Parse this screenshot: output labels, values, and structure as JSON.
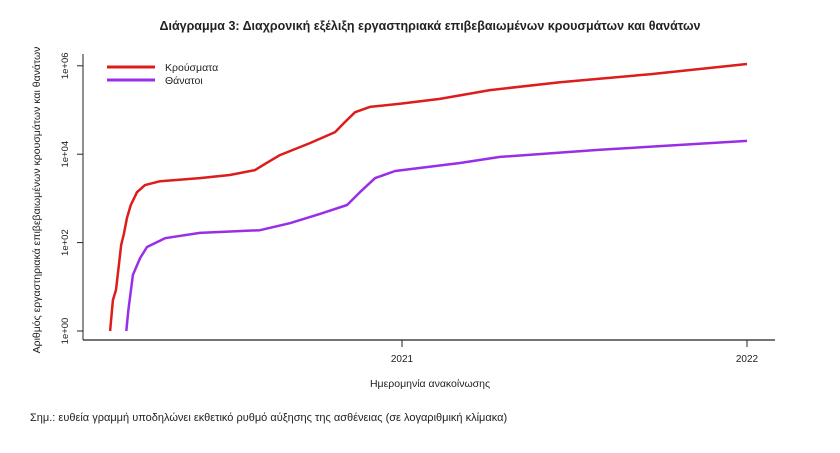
{
  "chart_data": {
    "type": "line",
    "title": "Διάγραμμα 3: Διαχρονική εξέλιξη εργαστηριακά επιβεβαιωμένων κρουσμάτων και θανάτων",
    "xlabel": "Ημερομηνία ανακοίνωσης",
    "ylabel": "Αριθμός εργαστηριακά επιβεβαιωμένων κρουσμάτων και θανάτων",
    "yscale": "log",
    "ylim_log10": [
      0,
      6
    ],
    "xlim_year": [
      2020.08,
      2022.08
    ],
    "x_ticks": [
      {
        "value": 2021,
        "label": "2021"
      },
      {
        "value": 2022,
        "label": "2022"
      }
    ],
    "y_ticks": [
      {
        "log10": 0,
        "label": "1e+00"
      },
      {
        "log10": 2,
        "label": "1e+02"
      },
      {
        "log10": 4,
        "label": "1e+04"
      },
      {
        "log10": 6,
        "label": "1e+06"
      }
    ],
    "legend_position": "top-left",
    "series": [
      {
        "name": "Κρούσματα",
        "color": "#dd1c1c",
        "x": [
          2020.154,
          2020.162,
          2020.171,
          2020.186,
          2020.194,
          2020.203,
          2020.214,
          2020.232,
          2020.255,
          2020.299,
          2020.414,
          2020.501,
          2020.574,
          2020.603,
          2020.646,
          2020.733,
          2020.806,
          2020.835,
          2020.864,
          2020.907,
          2020.994,
          2021.11,
          2021.255,
          2021.458,
          2021.719,
          2022.0
        ],
        "log10_values": [
          0,
          0.7,
          0.93,
          1.95,
          2.2,
          2.56,
          2.85,
          3.14,
          3.3,
          3.39,
          3.46,
          3.53,
          3.64,
          3.78,
          3.98,
          4.25,
          4.5,
          4.73,
          4.95,
          5.07,
          5.14,
          5.25,
          5.45,
          5.63,
          5.81,
          6.04
        ]
      },
      {
        "name": "Θάνατοι",
        "color": "#9a2ee8",
        "x": [
          2020.201,
          2020.207,
          2020.22,
          2020.241,
          2020.261,
          2020.313,
          2020.414,
          2020.588,
          2020.675,
          2020.762,
          2020.841,
          2020.878,
          2020.922,
          2020.98,
          2021.168,
          2021.284,
          2021.574,
          2022.0
        ],
        "log10_values": [
          0,
          0.48,
          1.27,
          1.65,
          1.9,
          2.1,
          2.22,
          2.28,
          2.44,
          2.65,
          2.85,
          3.14,
          3.46,
          3.62,
          3.8,
          3.94,
          4.1,
          4.3
        ]
      }
    ]
  },
  "note": "Σημ.: ευθεία γραμμή υποδηλώνει εκθετικό ρυθμό αύξησης της ασθένειας (σε λογαριθμική κλίμακα)"
}
